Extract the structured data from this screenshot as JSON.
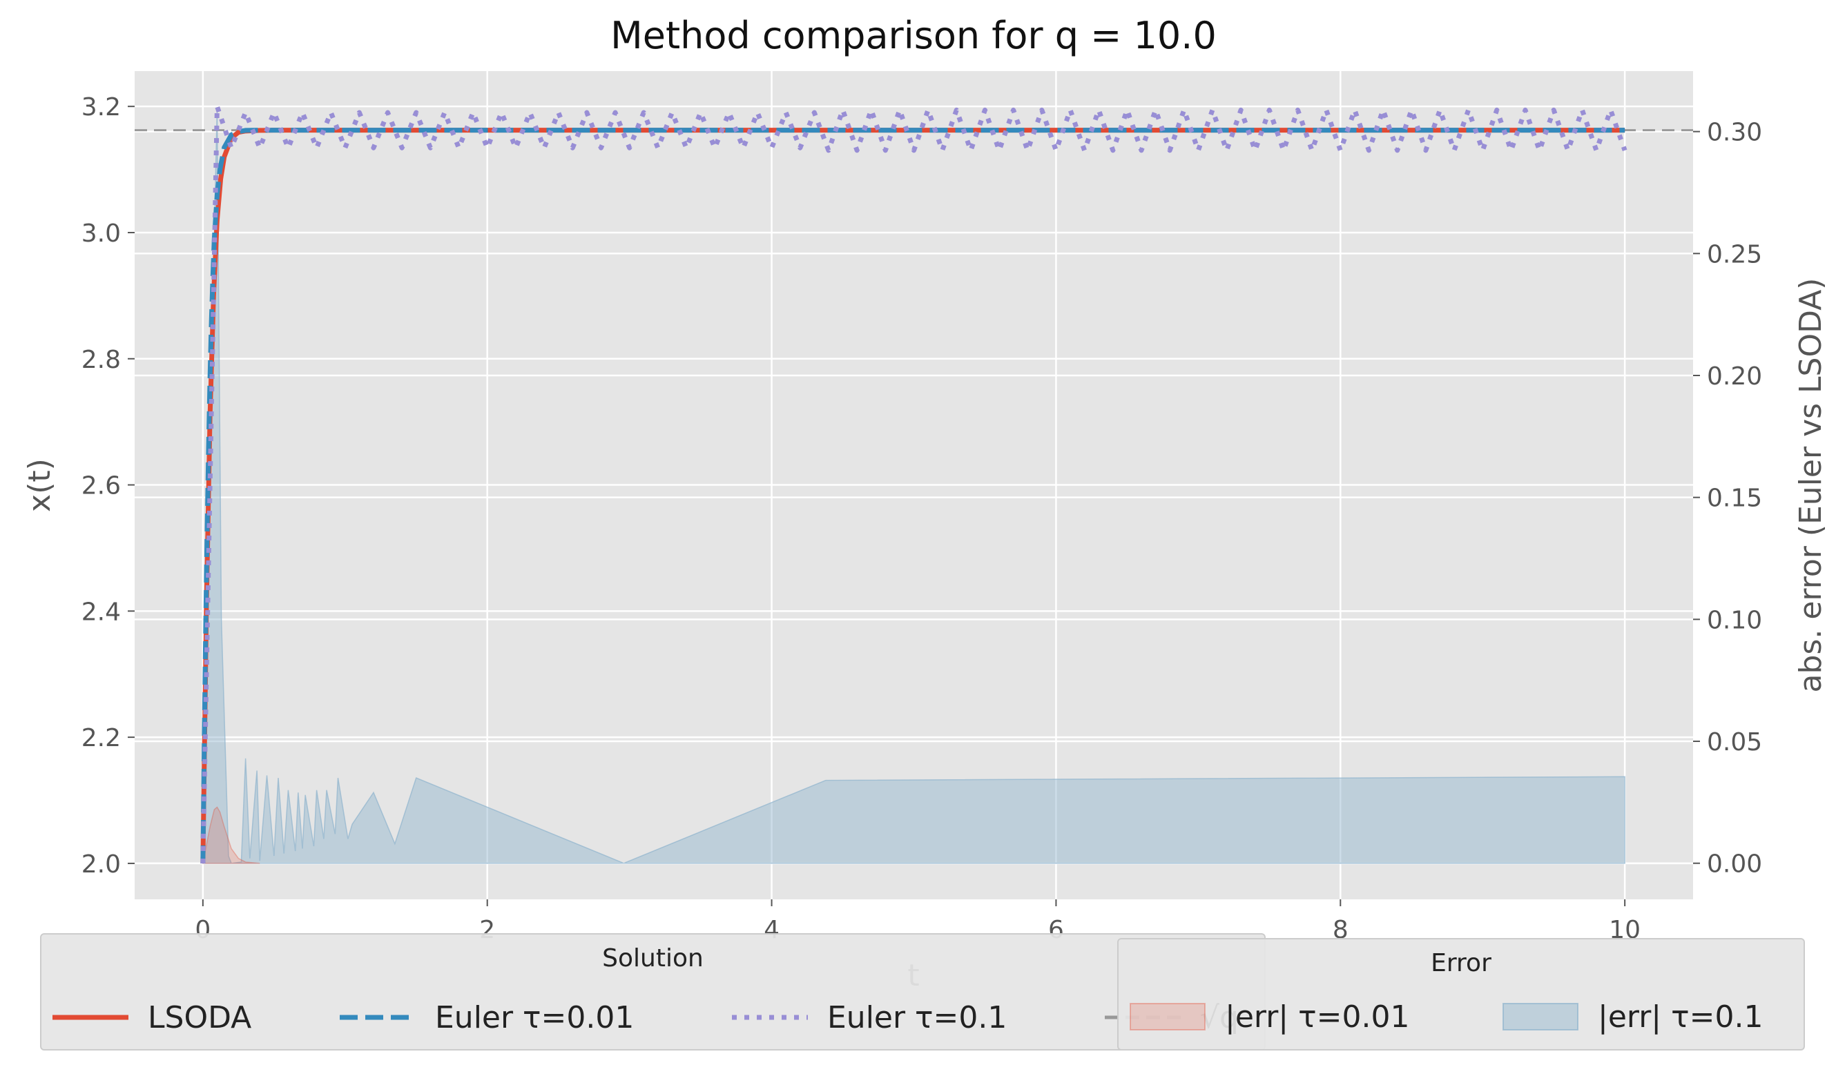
{
  "chart_data": {
    "type": "line",
    "title": "Method comparison for q = 10.0",
    "xlabel": "t",
    "ylabel": "x(t)",
    "y2label": "abs. error (Euler vs LSODA)",
    "xlim": [
      -0.48,
      10.48
    ],
    "ylim": [
      1.943,
      3.256
    ],
    "y2lim": [
      -0.0148,
      0.3248
    ],
    "xticks": [
      0,
      2,
      4,
      6,
      8,
      10
    ],
    "yticks": [
      2.0,
      2.2,
      2.4,
      2.6,
      2.8,
      3.0,
      3.2
    ],
    "y2ticks": [
      0.0,
      0.05,
      0.1,
      0.15,
      0.2,
      0.25,
      0.3
    ],
    "grid": true,
    "sqrt_q": 3.1623,
    "series": [
      {
        "name": "LSODA",
        "style": "solid",
        "color": "#e24a33",
        "axis": "left",
        "x": [
          0,
          0.025,
          0.05,
          0.075,
          0.1,
          0.125,
          0.15,
          0.2,
          0.25,
          0.3,
          0.4,
          0.5,
          10
        ],
        "y": [
          2.0,
          2.41,
          2.71,
          2.9,
          3.02,
          3.085,
          3.12,
          3.15,
          3.159,
          3.161,
          3.162,
          3.1623,
          3.1623
        ]
      },
      {
        "name": "Euler τ=0.01",
        "style": "dashed",
        "color": "#348abd",
        "axis": "left",
        "x": [
          0,
          0.01,
          0.02,
          0.03,
          0.04,
          0.05,
          0.06,
          0.07,
          0.08,
          0.1,
          0.12,
          0.15,
          0.2,
          0.25,
          0.3,
          0.4,
          10
        ],
        "y": [
          2.0,
          2.2,
          2.38,
          2.53,
          2.66,
          2.77,
          2.86,
          2.93,
          2.99,
          3.06,
          3.1,
          3.135,
          3.155,
          3.16,
          3.162,
          3.1623,
          3.1623
        ]
      },
      {
        "name": "Euler τ=0.1",
        "style": "dotted",
        "color": "#988ed5",
        "axis": "left",
        "oscillation": "alternating"
      },
      {
        "name": "√q",
        "style": "dashed",
        "color": "#999999",
        "axis": "left"
      },
      {
        "name": "|err| τ=0.01",
        "type": "area",
        "color": "#e24a33",
        "axis": "right",
        "x": [
          0,
          0.05,
          0.08,
          0.1,
          0.12,
          0.15,
          0.2,
          0.25,
          0.3,
          0.4
        ],
        "y": [
          0,
          0.015,
          0.022,
          0.023,
          0.021,
          0.015,
          0.006,
          0.002,
          0.0005,
          0
        ]
      },
      {
        "name": "|err| τ=0.1",
        "type": "area",
        "color": "#8eb3cd",
        "axis": "right",
        "x": [
          0,
          0.05,
          0.1,
          0.13,
          0.18,
          0.2,
          0.27,
          0.3,
          0.33,
          0.38,
          0.4,
          0.45,
          0.5,
          0.53,
          0.57,
          0.6,
          0.65,
          0.67,
          0.7,
          0.72,
          0.78,
          0.8,
          0.85,
          0.87,
          0.93,
          0.95,
          1.02,
          1.05,
          1.2,
          1.35,
          1.5,
          2.96,
          4.38,
          10.0
        ],
        "y": [
          0,
          0.18,
          0.31,
          0.1,
          0.003,
          0,
          0.0005,
          0.043,
          0.002,
          0.038,
          0.001,
          0.036,
          0.003,
          0.035,
          0.004,
          0.03,
          0.005,
          0.029,
          0.006,
          0.028,
          0.007,
          0.03,
          0.01,
          0.03,
          0.012,
          0.035,
          0.01,
          0.016,
          0.029,
          0.008,
          0.035,
          0,
          0.034,
          0.0355
        ]
      }
    ]
  },
  "legend": {
    "solution_title": "Solution",
    "error_title": "Error",
    "labels": [
      "LSODA",
      "Euler τ=0.01",
      "Euler τ=0.1",
      "√q",
      "|err| τ=0.01",
      "|err| τ=0.1"
    ]
  },
  "colors": {
    "lsoda": "#e24a33",
    "euler001": "#348abd",
    "euler01": "#988ed5",
    "sqrtq": "#999999",
    "err001": "#e24a33",
    "err01": "#8eb3cd",
    "plot_bg": "#e5e5e5",
    "grid": "#ffffff"
  }
}
